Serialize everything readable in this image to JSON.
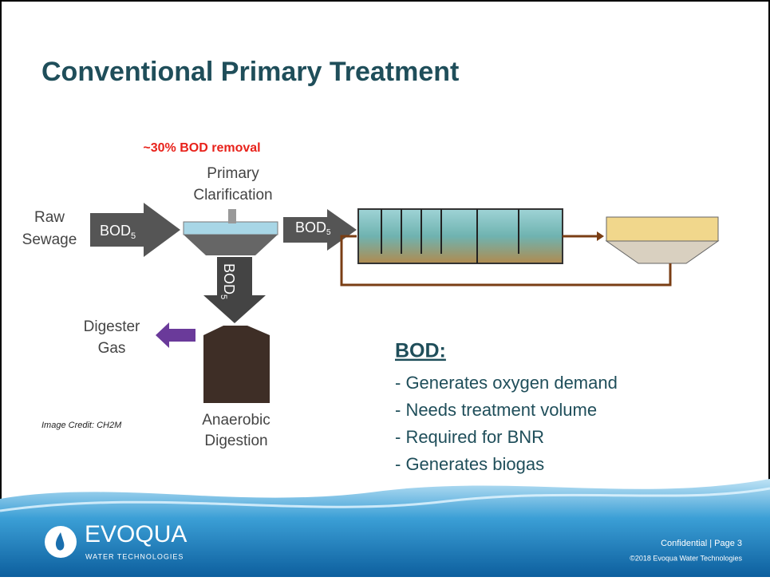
{
  "slide": {
    "title": "Conventional Primary Treatment",
    "diagram": {
      "removal_note": "~30% BOD removal",
      "clarifier_label": [
        "Primary",
        "Clarification"
      ],
      "influent_label": [
        "Raw",
        "Sewage"
      ],
      "arrows": [
        {
          "text": "BOD",
          "sub": "5"
        },
        {
          "text": "BOD",
          "sub": "5"
        },
        {
          "text": "BOD",
          "sub": "5"
        }
      ],
      "gas_label": [
        "Digester",
        "Gas"
      ],
      "digester_label": [
        "Anaerobic",
        "Digestion"
      ],
      "image_credit": "Image Credit: CH2M"
    },
    "bod_box": {
      "heading": "BOD:",
      "items": [
        "- Generates oxygen demand",
        "- Needs treatment volume",
        "- Required for BNR",
        "- Generates biogas"
      ]
    },
    "footer": {
      "logo": "EVOQUA",
      "logo_sub": "WATER TECHNOLOGIES",
      "confidential": "Confidential | Page 3",
      "copyright": "©2018 Evoqua Water Technologies"
    }
  }
}
